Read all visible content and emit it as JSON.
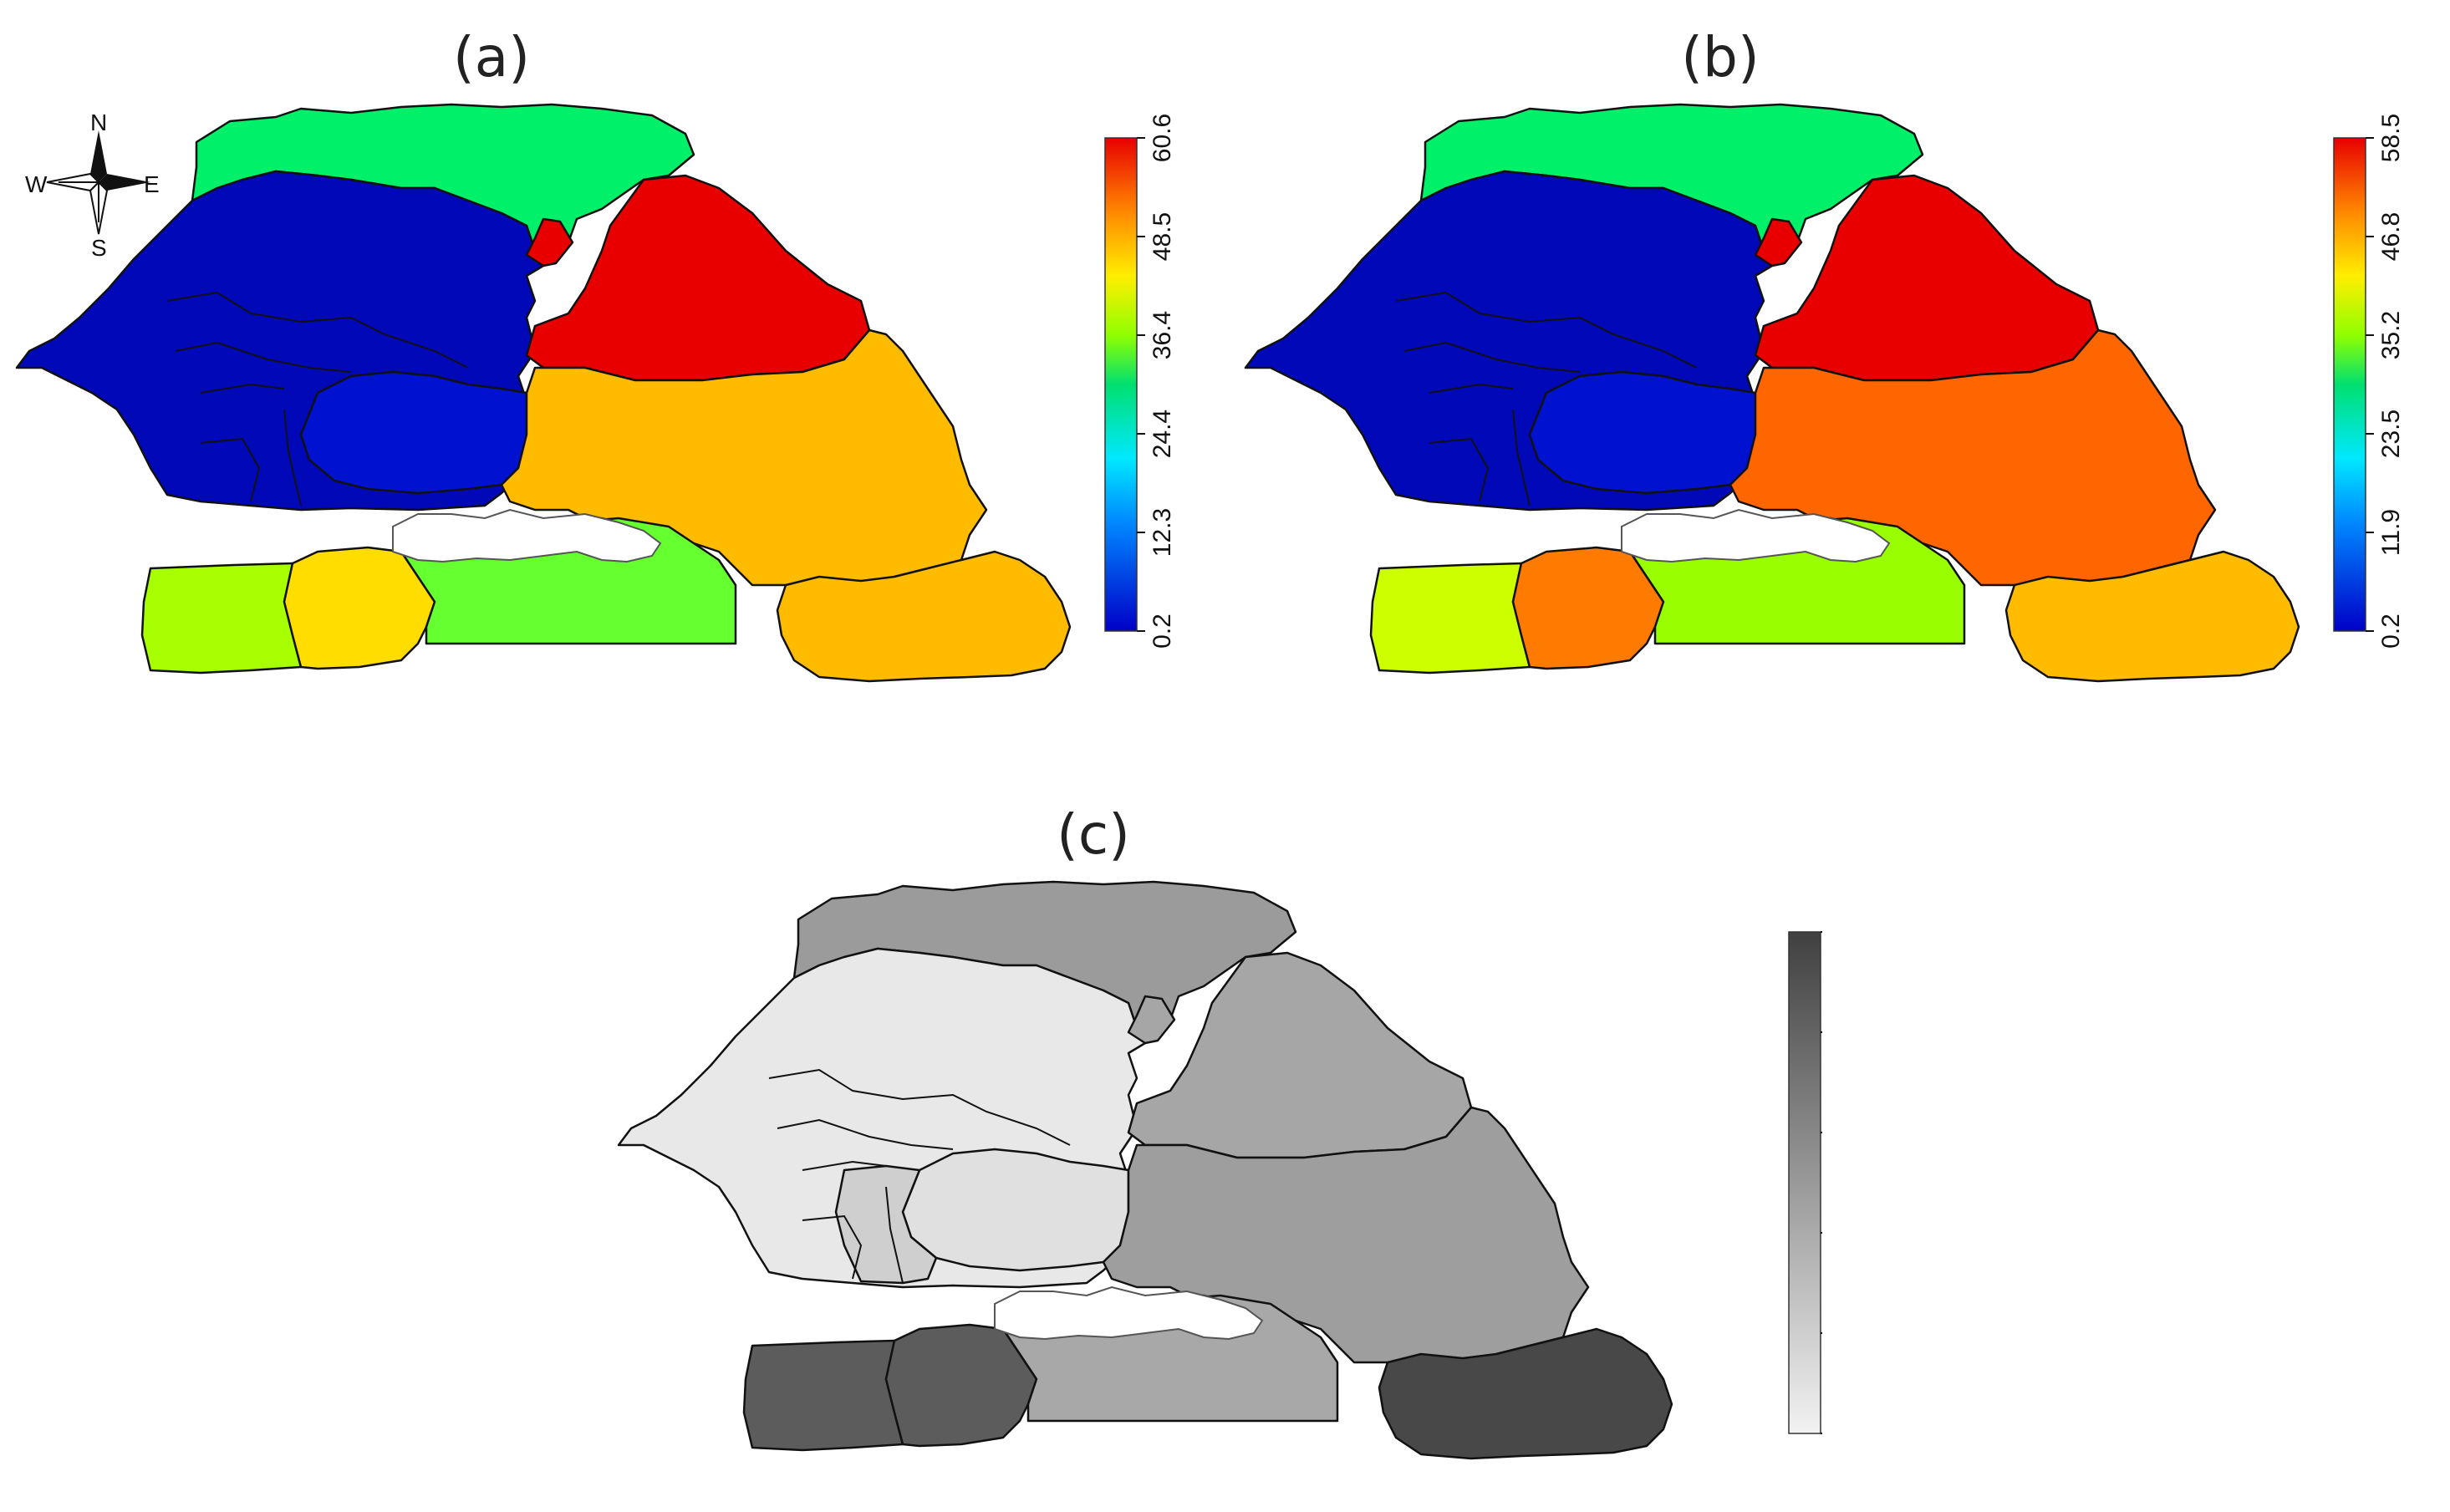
{
  "panels": [
    {
      "label": "(a)",
      "colorbar": {
        "type": "rainbow",
        "ticks": [
          "0.2",
          "12.3",
          "24.4",
          "36.4",
          "48.5",
          "60.6"
        ]
      },
      "regions": {
        "north": "#00f06a",
        "west": "#0008b8",
        "center_small": "#0012d0",
        "east_north": "#e80000",
        "east_south": "#ffbb00",
        "east_enclave": "#e80000",
        "south_west": "#a8ff00",
        "south_mid": "#ffdd00",
        "south_center": "#66ff30",
        "south_east": "#ffbb00"
      }
    },
    {
      "label": "(b)",
      "colorbar": {
        "type": "rainbow",
        "ticks": [
          "0.2",
          "11.9",
          "23.5",
          "35.2",
          "46.8",
          "58.5"
        ]
      },
      "regions": {
        "north": "#00f06a",
        "west": "#0008b8",
        "center_small": "#0012d0",
        "east_north": "#e80000",
        "east_south": "#ff6600",
        "east_enclave": "#e80000",
        "south_west": "#ccff00",
        "south_mid": "#ff7a00",
        "south_center": "#99ff00",
        "south_east": "#ffbb00"
      }
    },
    {
      "label": "(c)",
      "colorbar": {
        "type": "grey",
        "ticks": [
          "0",
          "0.4",
          "0.8",
          "1.2",
          "1.6",
          "2"
        ]
      },
      "regions": {
        "north": "#9b9b9b",
        "west": "#e8e8e8",
        "center_small": "#e0e0e0",
        "east_north": "#a6a6a6",
        "east_south": "#9e9e9e",
        "east_enclave": "#a6a6a6",
        "south_west": "#5c5c5c",
        "south_mid": "#5c5c5c",
        "south_center": "#a8a8a8",
        "south_east": "#484848",
        "west_inner": "#cfcfcf"
      }
    }
  ],
  "compass": {
    "n": "N",
    "s": "S",
    "e": "E",
    "w": "W"
  }
}
